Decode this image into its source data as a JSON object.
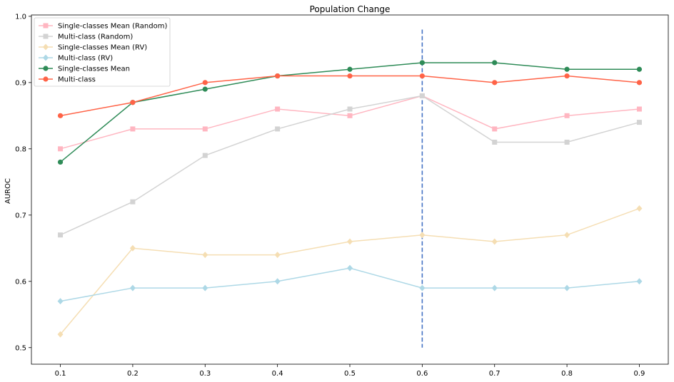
{
  "chart_data": {
    "type": "line",
    "title": "Population Change",
    "xlabel": "",
    "ylabel": "AUROC",
    "x": [
      0.1,
      0.2,
      0.3,
      0.4,
      0.5,
      0.6,
      0.7,
      0.8,
      0.9
    ],
    "x_tick_labels": [
      "0.1",
      "0.2",
      "0.3",
      "0.4",
      "0.5",
      "0.6",
      "0.7",
      "0.8",
      "0.9"
    ],
    "y_ticks": [
      0.5,
      0.6,
      0.7,
      0.8,
      0.9,
      1.0
    ],
    "y_tick_labels": [
      "0.5",
      "0.6",
      "0.7",
      "0.8",
      "0.9",
      "1.0"
    ],
    "xlim": [
      0.06,
      0.94
    ],
    "ylim": [
      0.475,
      1.002
    ],
    "grid": false,
    "legend_position": "top-left",
    "series": [
      {
        "name": "Single-classes Mean (Random)",
        "color": "#ffb6c1",
        "marker": "square",
        "values": [
          0.8,
          0.83,
          0.83,
          0.86,
          0.85,
          0.88,
          0.83,
          0.85,
          0.86
        ]
      },
      {
        "name": "Multi-class (Random)",
        "color": "#d3d3d3",
        "marker": "square",
        "values": [
          0.67,
          0.72,
          0.79,
          0.83,
          0.86,
          0.88,
          0.81,
          0.81,
          0.84
        ]
      },
      {
        "name": "Single-classes Mean (RV)",
        "color": "#f5deb3",
        "marker": "diamond",
        "values": [
          0.52,
          0.65,
          0.64,
          0.64,
          0.66,
          0.67,
          0.66,
          0.67,
          0.71
        ]
      },
      {
        "name": "Multi-class (RV)",
        "color": "#add8e6",
        "marker": "diamond",
        "values": [
          0.57,
          0.59,
          0.59,
          0.6,
          0.62,
          0.59,
          0.59,
          0.59,
          0.6
        ]
      },
      {
        "name": "Single-classes Mean",
        "color": "#2e8b57",
        "marker": "circle",
        "values": [
          0.78,
          0.87,
          0.89,
          0.91,
          0.92,
          0.93,
          0.93,
          0.92,
          0.92
        ]
      },
      {
        "name": "Multi-class",
        "color": "#ff6347",
        "marker": "circle",
        "values": [
          0.85,
          0.87,
          0.9,
          0.91,
          0.91,
          0.91,
          0.9,
          0.91,
          0.9
        ]
      }
    ],
    "annotations": [
      {
        "type": "vertical-dashed-line",
        "x": 0.6,
        "y_from": 0.5,
        "y_to": 0.98,
        "color": "#4472c4"
      }
    ]
  }
}
